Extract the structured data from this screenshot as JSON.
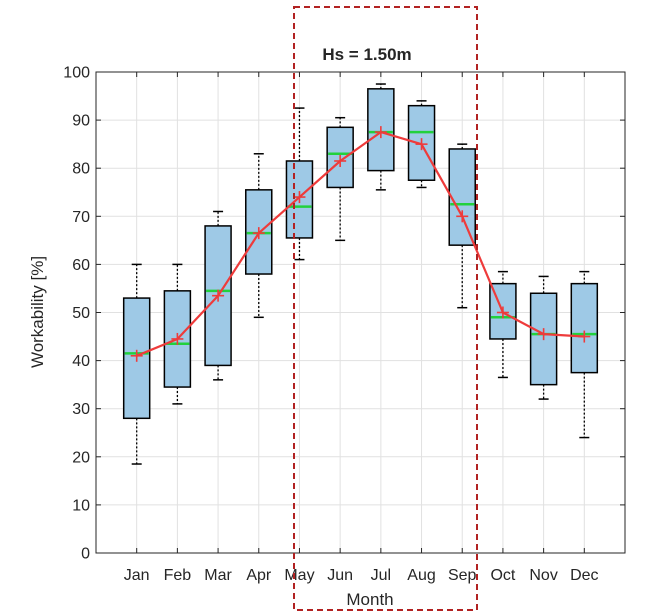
{
  "chart_data": {
    "type": "box",
    "title": "Hs = 1.50m",
    "xlabel": "Month",
    "ylabel": "Workability [%]",
    "ylim": [
      0,
      100
    ],
    "yticks": [
      0,
      10,
      20,
      30,
      40,
      50,
      60,
      70,
      80,
      90,
      100
    ],
    "grid": true,
    "categories": [
      "Jan",
      "Feb",
      "Mar",
      "Apr",
      "May",
      "Jun",
      "Jul",
      "Aug",
      "Sep",
      "Oct",
      "Nov",
      "Dec"
    ],
    "boxes": [
      {
        "whisker_low": 18.5,
        "q1": 28,
        "median": 41.5,
        "q3": 53,
        "whisker_high": 60
      },
      {
        "whisker_low": 31,
        "q1": 34.5,
        "median": 43.5,
        "q3": 54.5,
        "whisker_high": 60
      },
      {
        "whisker_low": 36,
        "q1": 39,
        "median": 54.5,
        "q3": 68,
        "whisker_high": 71
      },
      {
        "whisker_low": 49,
        "q1": 58,
        "median": 66.5,
        "q3": 75.5,
        "whisker_high": 83
      },
      {
        "whisker_low": 61,
        "q1": 65.5,
        "median": 72,
        "q3": 81.5,
        "whisker_high": 92.5
      },
      {
        "whisker_low": 65,
        "q1": 76,
        "median": 83,
        "q3": 88.5,
        "whisker_high": 90.5
      },
      {
        "whisker_low": 75.5,
        "q1": 79.5,
        "median": 87.5,
        "q3": 96.5,
        "whisker_high": 97.5
      },
      {
        "whisker_low": 76,
        "q1": 77.5,
        "median": 87.5,
        "q3": 93,
        "whisker_high": 94
      },
      {
        "whisker_low": 51,
        "q1": 64,
        "median": 72.5,
        "q3": 84,
        "whisker_high": 85
      },
      {
        "whisker_low": 36.5,
        "q1": 44.5,
        "median": 49,
        "q3": 56,
        "whisker_high": 58.5
      },
      {
        "whisker_low": 32,
        "q1": 35,
        "median": 45.5,
        "q3": 54,
        "whisker_high": 57.5
      },
      {
        "whisker_low": 24,
        "q1": 37.5,
        "median": 45.5,
        "q3": 56,
        "whisker_high": 58.5
      }
    ],
    "mean_line": [
      41,
      44.5,
      53.5,
      66.5,
      74,
      81.5,
      87.5,
      85,
      70,
      50,
      45.5,
      45
    ]
  },
  "colors": {
    "box_fill": "#9ec9e6",
    "box_edge": "#000000",
    "median": "#22d13c",
    "mean_line": "#ee3b3b",
    "grid": "#e1e1e1",
    "highlight": "#b22222"
  }
}
